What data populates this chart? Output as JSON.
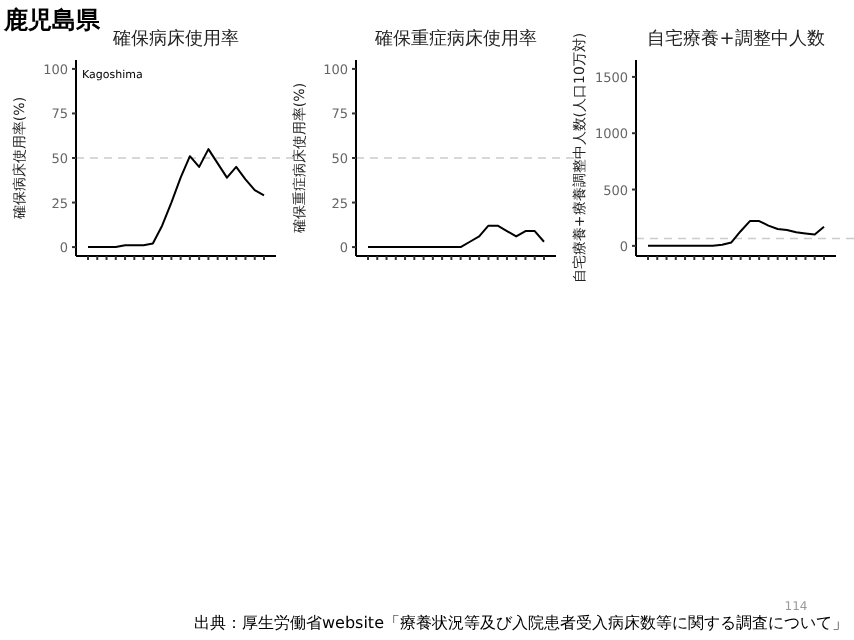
{
  "chart_data": [
    {
      "type": "line",
      "title": "確保病床使用率",
      "ylabel": "確保病床使用率(%)",
      "categories": [
        null,
        null,
        null,
        null,
        null,
        null,
        null,
        null,
        null,
        null,
        null,
        null,
        null,
        null,
        null,
        null,
        null,
        null,
        null,
        null
      ],
      "series": [
        {
          "color": "#000000",
          "values": [
            0,
            0,
            0,
            0,
            1,
            1,
            1,
            2,
            12,
            25,
            39,
            51,
            45,
            55,
            47,
            39,
            45,
            38,
            32,
            29
          ]
        }
      ],
      "ylim": [
        -5,
        105
      ],
      "yticks": [
        0,
        25,
        50,
        75,
        100
      ],
      "grid": false,
      "tick_labels": "y",
      "ref_lines": [
        {
          "axis": "y",
          "value": 50,
          "color": "#cccccc",
          "line_style": "dashed"
        }
      ],
      "annotations": [
        "鹿児島県",
        "Kagoshima"
      ]
    },
    {
      "type": "line",
      "title": "確保重症病床使用率",
      "ylabel": "確保重症病床使用率(%)",
      "categories": [
        null,
        null,
        null,
        null,
        null,
        null,
        null,
        null,
        null,
        null,
        null,
        null,
        null,
        null,
        null,
        null,
        null,
        null,
        null,
        null
      ],
      "series": [
        {
          "color": "#000000",
          "values": [
            0,
            0,
            0,
            0,
            0,
            0,
            0,
            0,
            0,
            0,
            0,
            3,
            6,
            12,
            12,
            9,
            6,
            9,
            9,
            3
          ]
        }
      ],
      "ylim": [
        -5,
        105
      ],
      "yticks": [
        0,
        25,
        50,
        75,
        100
      ],
      "grid": false,
      "tick_labels": "y",
      "ref_lines": [
        {
          "axis": "y",
          "value": 50,
          "color": "#cccccc",
          "line_style": "dashed"
        }
      ]
    },
    {
      "type": "line",
      "title": "自宅療養+調整中人数",
      "ylabel": "自宅療養+療養調整中人数(人口10万対)",
      "categories": [
        null,
        null,
        null,
        null,
        null,
        null,
        null,
        null,
        null,
        null,
        null,
        null,
        null,
        null,
        null,
        null,
        null,
        null,
        null,
        null
      ],
      "series": [
        {
          "color": "#000000",
          "values": [
            0,
            0,
            0,
            0,
            0,
            0,
            0,
            0,
            10,
            30,
            130,
            220,
            220,
            180,
            150,
            140,
            120,
            110,
            100,
            170
          ]
        }
      ],
      "ylim": [
        -90,
        1650
      ],
      "yticks": [
        0,
        500,
        1000,
        1500
      ],
      "grid": false,
      "tick_labels": "y",
      "ref_lines": [
        {
          "axis": "y",
          "value": 65,
          "color": "#cccccc",
          "line_style": "dashed"
        }
      ],
      "annotations": [
        "114",
        "出典：厚生労働省website「療養状況等及び入院患者受入病床数等に関する調査について」"
      ]
    }
  ]
}
